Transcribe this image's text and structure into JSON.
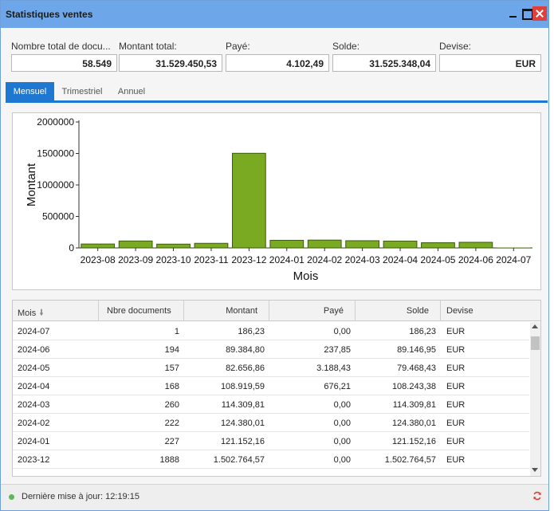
{
  "window": {
    "title": "Statistiques ventes"
  },
  "summary": [
    {
      "label": "Nombre total de docu...",
      "value": "58.549"
    },
    {
      "label": "Montant total:",
      "value": "31.529.450,53"
    },
    {
      "label": "Payé:",
      "value": "4.102,49"
    },
    {
      "label": "Solde:",
      "value": "31.525.348,04"
    },
    {
      "label": "Devise:",
      "value": "EUR"
    }
  ],
  "tabs": [
    {
      "label": "Mensuel",
      "active": true
    },
    {
      "label": "Trimestriel",
      "active": false
    },
    {
      "label": "Annuel",
      "active": false
    }
  ],
  "chart_data": {
    "type": "bar",
    "categories": [
      "2023-08",
      "2023-09",
      "2023-10",
      "2023-11",
      "2023-12",
      "2024-01",
      "2024-02",
      "2024-03",
      "2024-04",
      "2024-05",
      "2024-06",
      "2024-07"
    ],
    "values": [
      62000,
      110000,
      60000,
      73000,
      1502764.57,
      121152.16,
      124380.01,
      114309.81,
      108919.59,
      82656.86,
      89384.8,
      186.23
    ],
    "yticks": [
      "0",
      "500000",
      "1000000",
      "1500000",
      "2000000"
    ],
    "ylim": [
      0,
      2000000
    ],
    "xlabel": "Mois",
    "ylabel": "Montant",
    "bar_color": "#7aaa22",
    "bar_color_dark": "#4f7a10",
    "grid": false,
    "legend": "none"
  },
  "grid": {
    "columns": [
      "Mois",
      "Nbre documents",
      "Montant",
      "Payé",
      "Solde",
      "Devise"
    ],
    "rows": [
      [
        "2024-07",
        "1",
        "186,23",
        "0,00",
        "186,23",
        "EUR"
      ],
      [
        "2024-06",
        "194",
        "89.384,80",
        "237,85",
        "89.146,95",
        "EUR"
      ],
      [
        "2024-05",
        "157",
        "82.656,86",
        "3.188,43",
        "79.468,43",
        "EUR"
      ],
      [
        "2024-04",
        "168",
        "108.919,59",
        "676,21",
        "108.243,38",
        "EUR"
      ],
      [
        "2024-03",
        "260",
        "114.309,81",
        "0,00",
        "114.309,81",
        "EUR"
      ],
      [
        "2024-02",
        "222",
        "124.380,01",
        "0,00",
        "124.380,01",
        "EUR"
      ],
      [
        "2024-01",
        "227",
        "121.152,16",
        "0,00",
        "121.152,16",
        "EUR"
      ],
      [
        "2023-12",
        "1888",
        "1.502.764,57",
        "0,00",
        "1.502.764,57",
        "EUR"
      ]
    ]
  },
  "status": {
    "text": "Dernière mise à jour: 12:19:15",
    "dot_color": "#5cb85c"
  },
  "colors": {
    "accent": "#1e78d2",
    "titlebar": "#6ea6ea",
    "close": "#e0403a"
  }
}
